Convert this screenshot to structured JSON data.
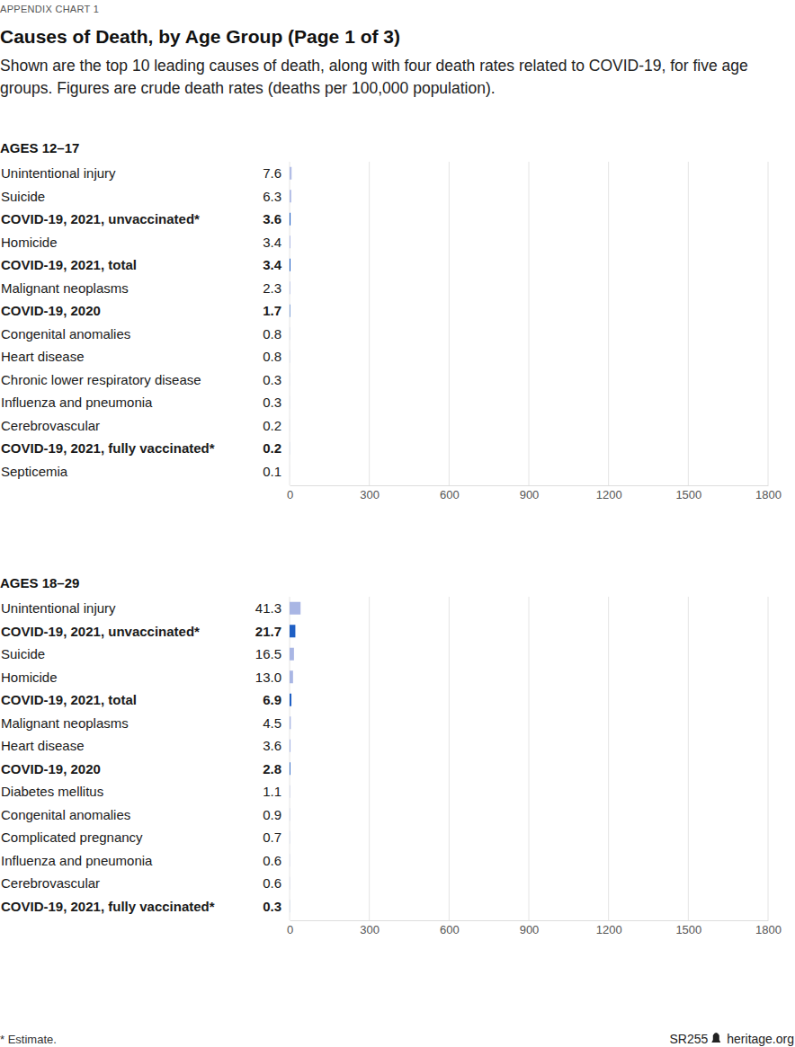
{
  "header": {
    "kicker": "APPENDIX CHART 1",
    "title": "Causes of Death, by Age Group (Page 1 of 3)",
    "subtitle": "Shown are the top 10 leading causes of death, along with four death rates related to COVID-19, for five age groups. Figures are crude death rates (deaths per 100,000 population)."
  },
  "chart_data": [
    {
      "type": "bar",
      "orientation": "horizontal",
      "title": "AGES 12–17",
      "categories": [
        "Unintentional injury",
        "Suicide",
        "COVID-19, 2021, unvaccinated*",
        "Homicide",
        "COVID-19, 2021, total",
        "Malignant neoplasms",
        "COVID-19, 2020",
        "Congenital anomalies",
        "Heart disease",
        "Chronic lower respiratory disease",
        "Influenza and pneumonia",
        "Cerebrovascular",
        "COVID-19, 2021, fully vaccinated*",
        "Septicemia"
      ],
      "values": [
        7.6,
        6.3,
        3.6,
        3.4,
        3.4,
        2.3,
        1.7,
        0.8,
        0.8,
        0.3,
        0.3,
        0.2,
        0.2,
        0.1
      ],
      "value_labels": [
        "7.6",
        "6.3",
        "3.6",
        "3.4",
        "3.4",
        "2.3",
        "1.7",
        "0.8",
        "0.8",
        "0.3",
        "0.3",
        "0.2",
        "0.2",
        "0.1"
      ],
      "colors": [
        "#b2bde6",
        "#b2bde6",
        "#1f5fc4",
        "#b2bde6",
        "#1f5fc4",
        "#b2bde6",
        "#1f5fc4",
        "#b2bde6",
        "#b2bde6",
        "#b2bde6",
        "#b2bde6",
        "#b2bde6",
        "#1f5fc4",
        "#b2bde6"
      ],
      "xlim": [
        0,
        1800
      ],
      "xticks": [
        0,
        300,
        600,
        900,
        1200,
        1500,
        1800
      ],
      "grid": true,
      "data_labels": true
    },
    {
      "type": "bar",
      "orientation": "horizontal",
      "title": "AGES 18–29",
      "categories": [
        "Unintentional injury",
        "COVID-19, 2021, unvaccinated*",
        "Suicide",
        "Homicide",
        "COVID-19, 2021, total",
        "Malignant neoplasms",
        "Heart disease",
        "COVID-19, 2020",
        "Diabetes mellitus",
        "Congenital anomalies",
        "Complicated pregnancy",
        "Influenza and pneumonia",
        "Cerebrovascular",
        "COVID-19, 2021, fully vaccinated*"
      ],
      "values": [
        41.3,
        21.7,
        16.5,
        13.0,
        6.9,
        4.5,
        3.6,
        2.8,
        1.1,
        0.9,
        0.7,
        0.6,
        0.6,
        0.3
      ],
      "value_labels": [
        "41.3",
        "21.7",
        "16.5",
        "13.0",
        "6.9",
        "4.5",
        "3.6",
        "2.8",
        "1.1",
        "0.9",
        "0.7",
        "0.6",
        "0.6",
        "0.3"
      ],
      "colors": [
        "#a9b6e4",
        "#1f5fc4",
        "#a9b6e4",
        "#a9b6e4",
        "#1f5fc4",
        "#a9b6e4",
        "#a9b6e4",
        "#1f5fc4",
        "#a9b6e4",
        "#a9b6e4",
        "#a9b6e4",
        "#a9b6e4",
        "#a9b6e4",
        "#1f5fc4"
      ],
      "xlim": [
        0,
        1800
      ],
      "xticks": [
        0,
        300,
        600,
        900,
        1200,
        1500,
        1800
      ],
      "grid": true,
      "data_labels": true
    }
  ],
  "footer": {
    "note": "* Estimate.",
    "code": "SR255",
    "site": "heritage.org"
  }
}
